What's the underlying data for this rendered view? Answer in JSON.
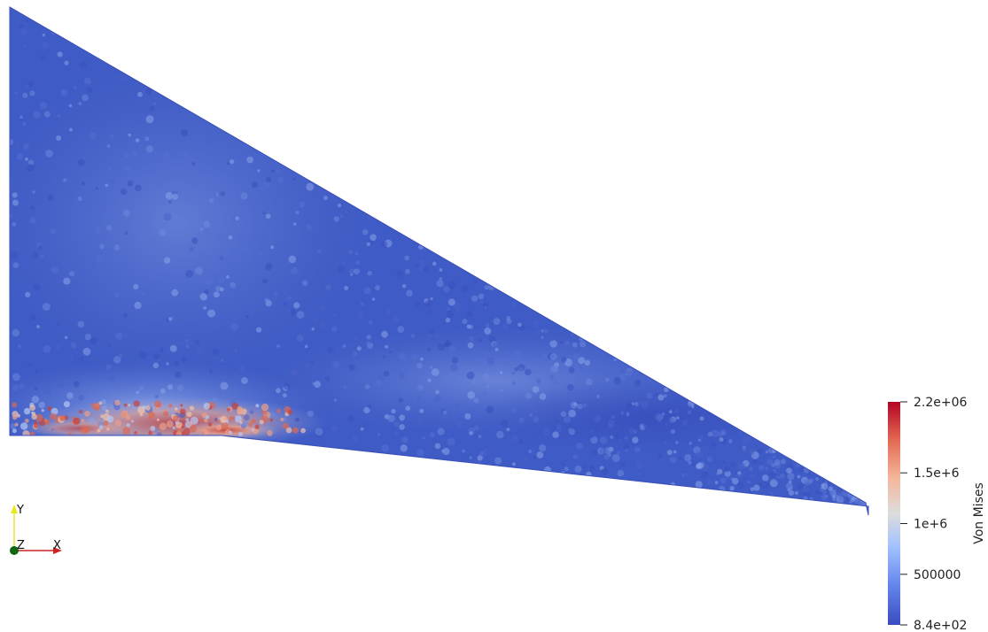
{
  "scalar_bar": {
    "title": "Von Mises",
    "min_label": "8.4e+02",
    "max_label": "2.2e+06",
    "range": [
      840,
      2200000
    ],
    "ticks": [
      {
        "value": 2200000,
        "label": "2.2e+06"
      },
      {
        "value": 1500000,
        "label": "1.5e+6"
      },
      {
        "value": 1000000,
        "label": "1e+6"
      },
      {
        "value": 500000,
        "label": "500000"
      },
      {
        "value": 840,
        "label": "8.4e+02"
      }
    ],
    "colormap": [
      "#3b4cc0",
      "#6282ea",
      "#a2c1ff",
      "#dddddd",
      "#f5b59a",
      "#e26952",
      "#b40426"
    ]
  },
  "orientation_axes": {
    "x_label": "X",
    "y_label": "Y",
    "z_label": "Z",
    "x_color": "#cc2222",
    "y_color": "#e8e822",
    "z_color": "#116611"
  },
  "mesh": {
    "base_color": "#3f5bc5",
    "hotspot_color": "#c6423b"
  }
}
